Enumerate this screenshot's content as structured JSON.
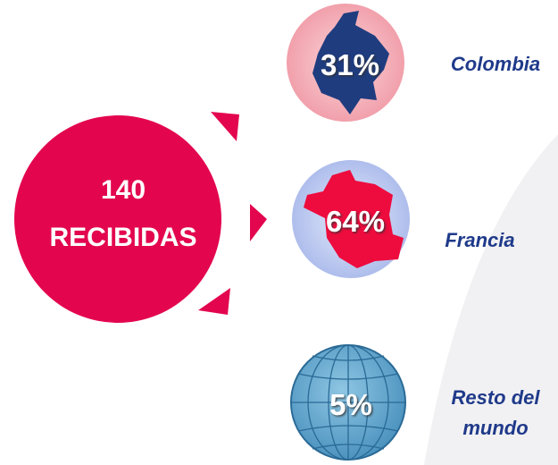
{
  "center": {
    "number": "140",
    "label": "RECIBIDAS"
  },
  "items": [
    {
      "percent": "31%",
      "label": "Colombia"
    },
    {
      "percent": "64%",
      "label": "Francia"
    },
    {
      "percent": "5%",
      "label": "Resto del mundo"
    }
  ]
}
